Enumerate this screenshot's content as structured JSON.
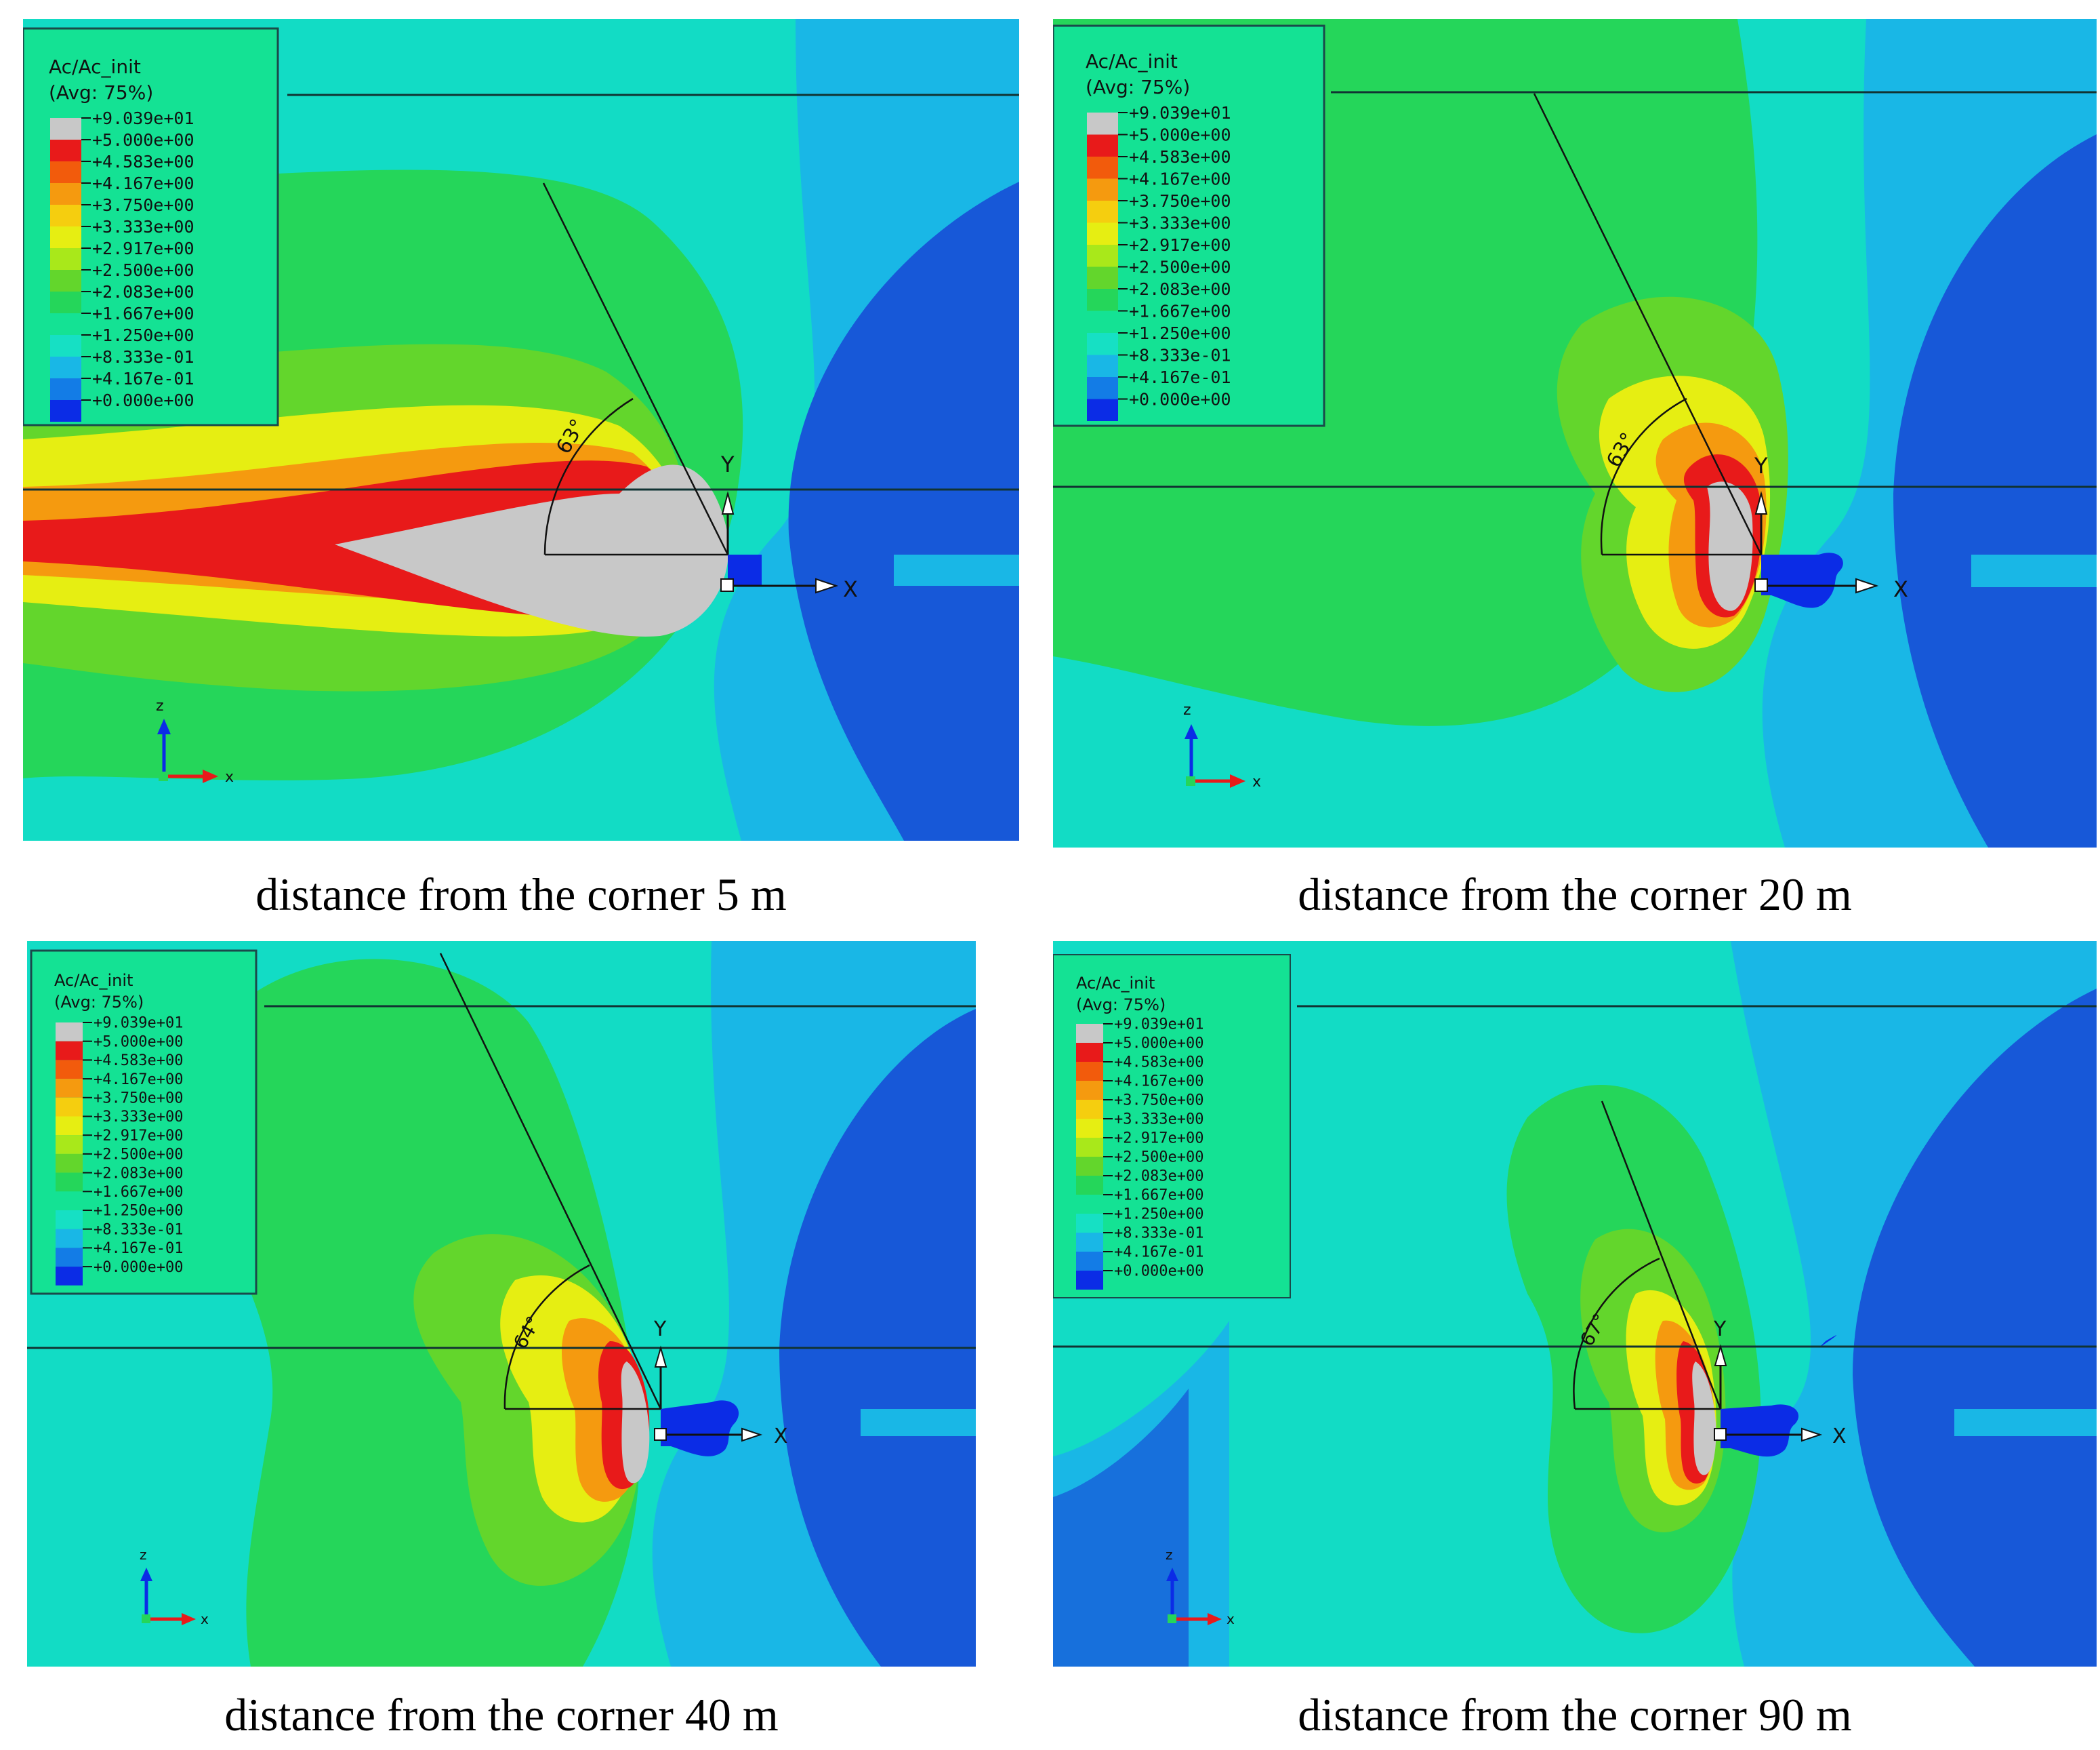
{
  "legend": {
    "title": "Ac/Ac_init",
    "subtitle": "(Avg: 75%)",
    "values": [
      "+9.039e+01",
      "+5.000e+00",
      "+4.583e+00",
      "+4.167e+00",
      "+3.750e+00",
      "+3.333e+00",
      "+2.917e+00",
      "+2.500e+00",
      "+2.083e+00",
      "+1.667e+00",
      "+1.250e+00",
      "+8.333e-01",
      "+4.167e-01",
      "+0.000e+00"
    ],
    "colors": [
      "#c8c8c8",
      "#e81a1a",
      "#f25b0c",
      "#f59a0f",
      "#f5ce0f",
      "#e6ee12",
      "#a9e81a",
      "#63d62c",
      "#25d65a",
      "#14e294",
      "#16e0c4",
      "#19b7e6",
      "#137ce6",
      "#0b2ce6"
    ]
  },
  "axes": {
    "x": "X",
    "y": "Y",
    "triad_z": "z",
    "triad_x": "x"
  },
  "colors": {
    "background": "#12dcc5",
    "green_zone": "#25d65a",
    "blue_zone": "#1758d8",
    "dark_blue": "#0b2ce6",
    "grey": "#c8c8c8"
  },
  "panels": [
    {
      "caption": "distance from the corner 5 m",
      "angle": "63°"
    },
    {
      "caption": "distance from the corner 20 m",
      "angle": "63°"
    },
    {
      "caption": "distance from the corner 40 m",
      "angle": "64°"
    },
    {
      "caption": "distance from the corner 90 m",
      "angle": "67°"
    }
  ]
}
